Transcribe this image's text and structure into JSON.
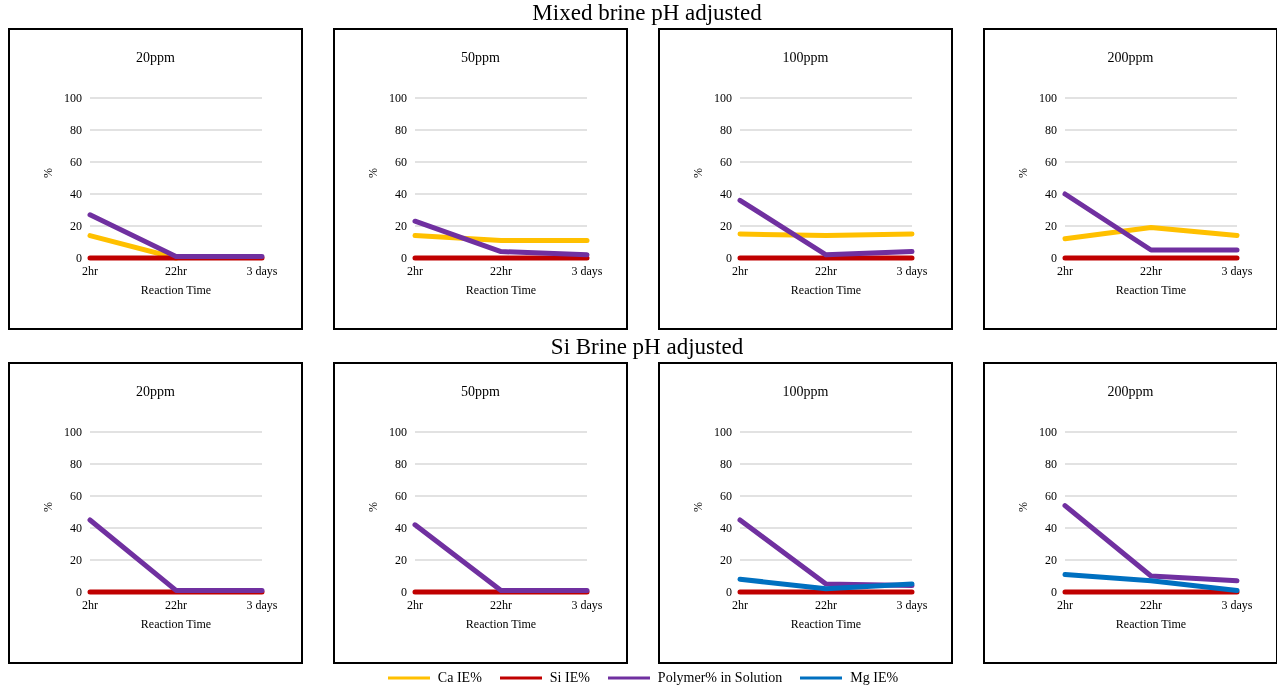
{
  "chart_data": [
    {
      "type": "line",
      "title": "20ppm",
      "annotations": [
        "Mixed brine pH adjusted"
      ],
      "xlabel": "Reaction Time",
      "ylabel": "%",
      "categories": [
        "2hr",
        "22hr",
        "3 days"
      ],
      "ylim": [
        0,
        100
      ],
      "yticks": [
        0,
        20,
        40,
        60,
        80,
        100
      ],
      "grid": "y",
      "legend": "bottom",
      "series": [
        {
          "name": "Ca IE%",
          "color": "#ffc000",
          "values": [
            14,
            0,
            null
          ]
        },
        {
          "name": "Si IE%",
          "color": "#c00000",
          "values": [
            0,
            0,
            0
          ]
        },
        {
          "name": "Polymer% in Solution",
          "color": "#7030a0",
          "values": [
            27,
            1,
            1
          ]
        }
      ]
    },
    {
      "type": "line",
      "title": "50ppm",
      "xlabel": "Reaction Time",
      "ylabel": "%",
      "categories": [
        "2hr",
        "22hr",
        "3 days"
      ],
      "ylim": [
        0,
        100
      ],
      "yticks": [
        0,
        20,
        40,
        60,
        80,
        100
      ],
      "grid": "y",
      "legend": "bottom",
      "series": [
        {
          "name": "Ca IE%",
          "color": "#ffc000",
          "values": [
            14,
            11,
            11
          ]
        },
        {
          "name": "Si IE%",
          "color": "#c00000",
          "values": [
            0,
            0,
            0
          ]
        },
        {
          "name": "Polymer% in Solution",
          "color": "#7030a0",
          "values": [
            23,
            4,
            2
          ]
        }
      ]
    },
    {
      "type": "line",
      "title": "100ppm",
      "xlabel": "Reaction Time",
      "ylabel": "%",
      "categories": [
        "2hr",
        "22hr",
        "3 days"
      ],
      "ylim": [
        0,
        100
      ],
      "yticks": [
        0,
        20,
        40,
        60,
        80,
        100
      ],
      "grid": "y",
      "legend": "bottom",
      "series": [
        {
          "name": "Ca IE%",
          "color": "#ffc000",
          "values": [
            15,
            14,
            15
          ]
        },
        {
          "name": "Si IE%",
          "color": "#c00000",
          "values": [
            0,
            0,
            0
          ]
        },
        {
          "name": "Polymer% in Solution",
          "color": "#7030a0",
          "values": [
            36,
            2,
            4
          ]
        }
      ]
    },
    {
      "type": "line",
      "title": "200ppm",
      "xlabel": "Reaction Time",
      "ylabel": "%",
      "categories": [
        "2hr",
        "22hr",
        "3 days"
      ],
      "ylim": [
        0,
        100
      ],
      "yticks": [
        0,
        20,
        40,
        60,
        80,
        100
      ],
      "grid": "y",
      "legend": "bottom",
      "series": [
        {
          "name": "Ca IE%",
          "color": "#ffc000",
          "values": [
            12,
            19,
            14
          ]
        },
        {
          "name": "Si IE%",
          "color": "#c00000",
          "values": [
            0,
            0,
            0
          ]
        },
        {
          "name": "Polymer% in Solution",
          "color": "#7030a0",
          "values": [
            40,
            5,
            5
          ]
        }
      ]
    },
    {
      "type": "line",
      "title": "20ppm",
      "annotations": [
        "Si Brine pH adjusted"
      ],
      "xlabel": "Reaction Time",
      "ylabel": "%",
      "categories": [
        "2hr",
        "22hr",
        "3 days"
      ],
      "ylim": [
        0,
        100
      ],
      "yticks": [
        0,
        20,
        40,
        60,
        80,
        100
      ],
      "grid": "y",
      "legend": "bottom",
      "series": [
        {
          "name": "Si IE%",
          "color": "#c00000",
          "values": [
            0,
            0,
            0
          ]
        },
        {
          "name": "Polymer% in Solution",
          "color": "#7030a0",
          "values": [
            45,
            1,
            1
          ]
        }
      ]
    },
    {
      "type": "line",
      "title": "50ppm",
      "xlabel": "Reaction Time",
      "ylabel": "%",
      "categories": [
        "2hr",
        "22hr",
        "3 days"
      ],
      "ylim": [
        0,
        100
      ],
      "yticks": [
        0,
        20,
        40,
        60,
        80,
        100
      ],
      "grid": "y",
      "legend": "bottom",
      "series": [
        {
          "name": "Si IE%",
          "color": "#c00000",
          "values": [
            0,
            0,
            0
          ]
        },
        {
          "name": "Polymer% in Solution",
          "color": "#7030a0",
          "values": [
            42,
            1,
            1
          ]
        }
      ]
    },
    {
      "type": "line",
      "title": "100ppm",
      "xlabel": "Reaction Time",
      "ylabel": "%",
      "categories": [
        "2hr",
        "22hr",
        "3 days"
      ],
      "ylim": [
        0,
        100
      ],
      "yticks": [
        0,
        20,
        40,
        60,
        80,
        100
      ],
      "grid": "y",
      "legend": "bottom",
      "series": [
        {
          "name": "Si IE%",
          "color": "#c00000",
          "values": [
            0,
            0,
            0
          ]
        },
        {
          "name": "Polymer% in Solution",
          "color": "#7030a0",
          "values": [
            45,
            5,
            4
          ]
        },
        {
          "name": "Mg IE%",
          "color": "#0070c0",
          "values": [
            8,
            2,
            5
          ]
        }
      ]
    },
    {
      "type": "line",
      "title": "200ppm",
      "xlabel": "Reaction Time",
      "ylabel": "%",
      "categories": [
        "2hr",
        "22hr",
        "3 days"
      ],
      "ylim": [
        0,
        100
      ],
      "yticks": [
        0,
        20,
        40,
        60,
        80,
        100
      ],
      "grid": "y",
      "legend": "bottom",
      "series": [
        {
          "name": "Si IE%",
          "color": "#c00000",
          "values": [
            0,
            0,
            0
          ]
        },
        {
          "name": "Polymer% in Solution",
          "color": "#7030a0",
          "values": [
            54,
            10,
            7
          ]
        },
        {
          "name": "Mg IE%",
          "color": "#0070c0",
          "values": [
            11,
            7,
            1
          ]
        }
      ]
    }
  ]
}
